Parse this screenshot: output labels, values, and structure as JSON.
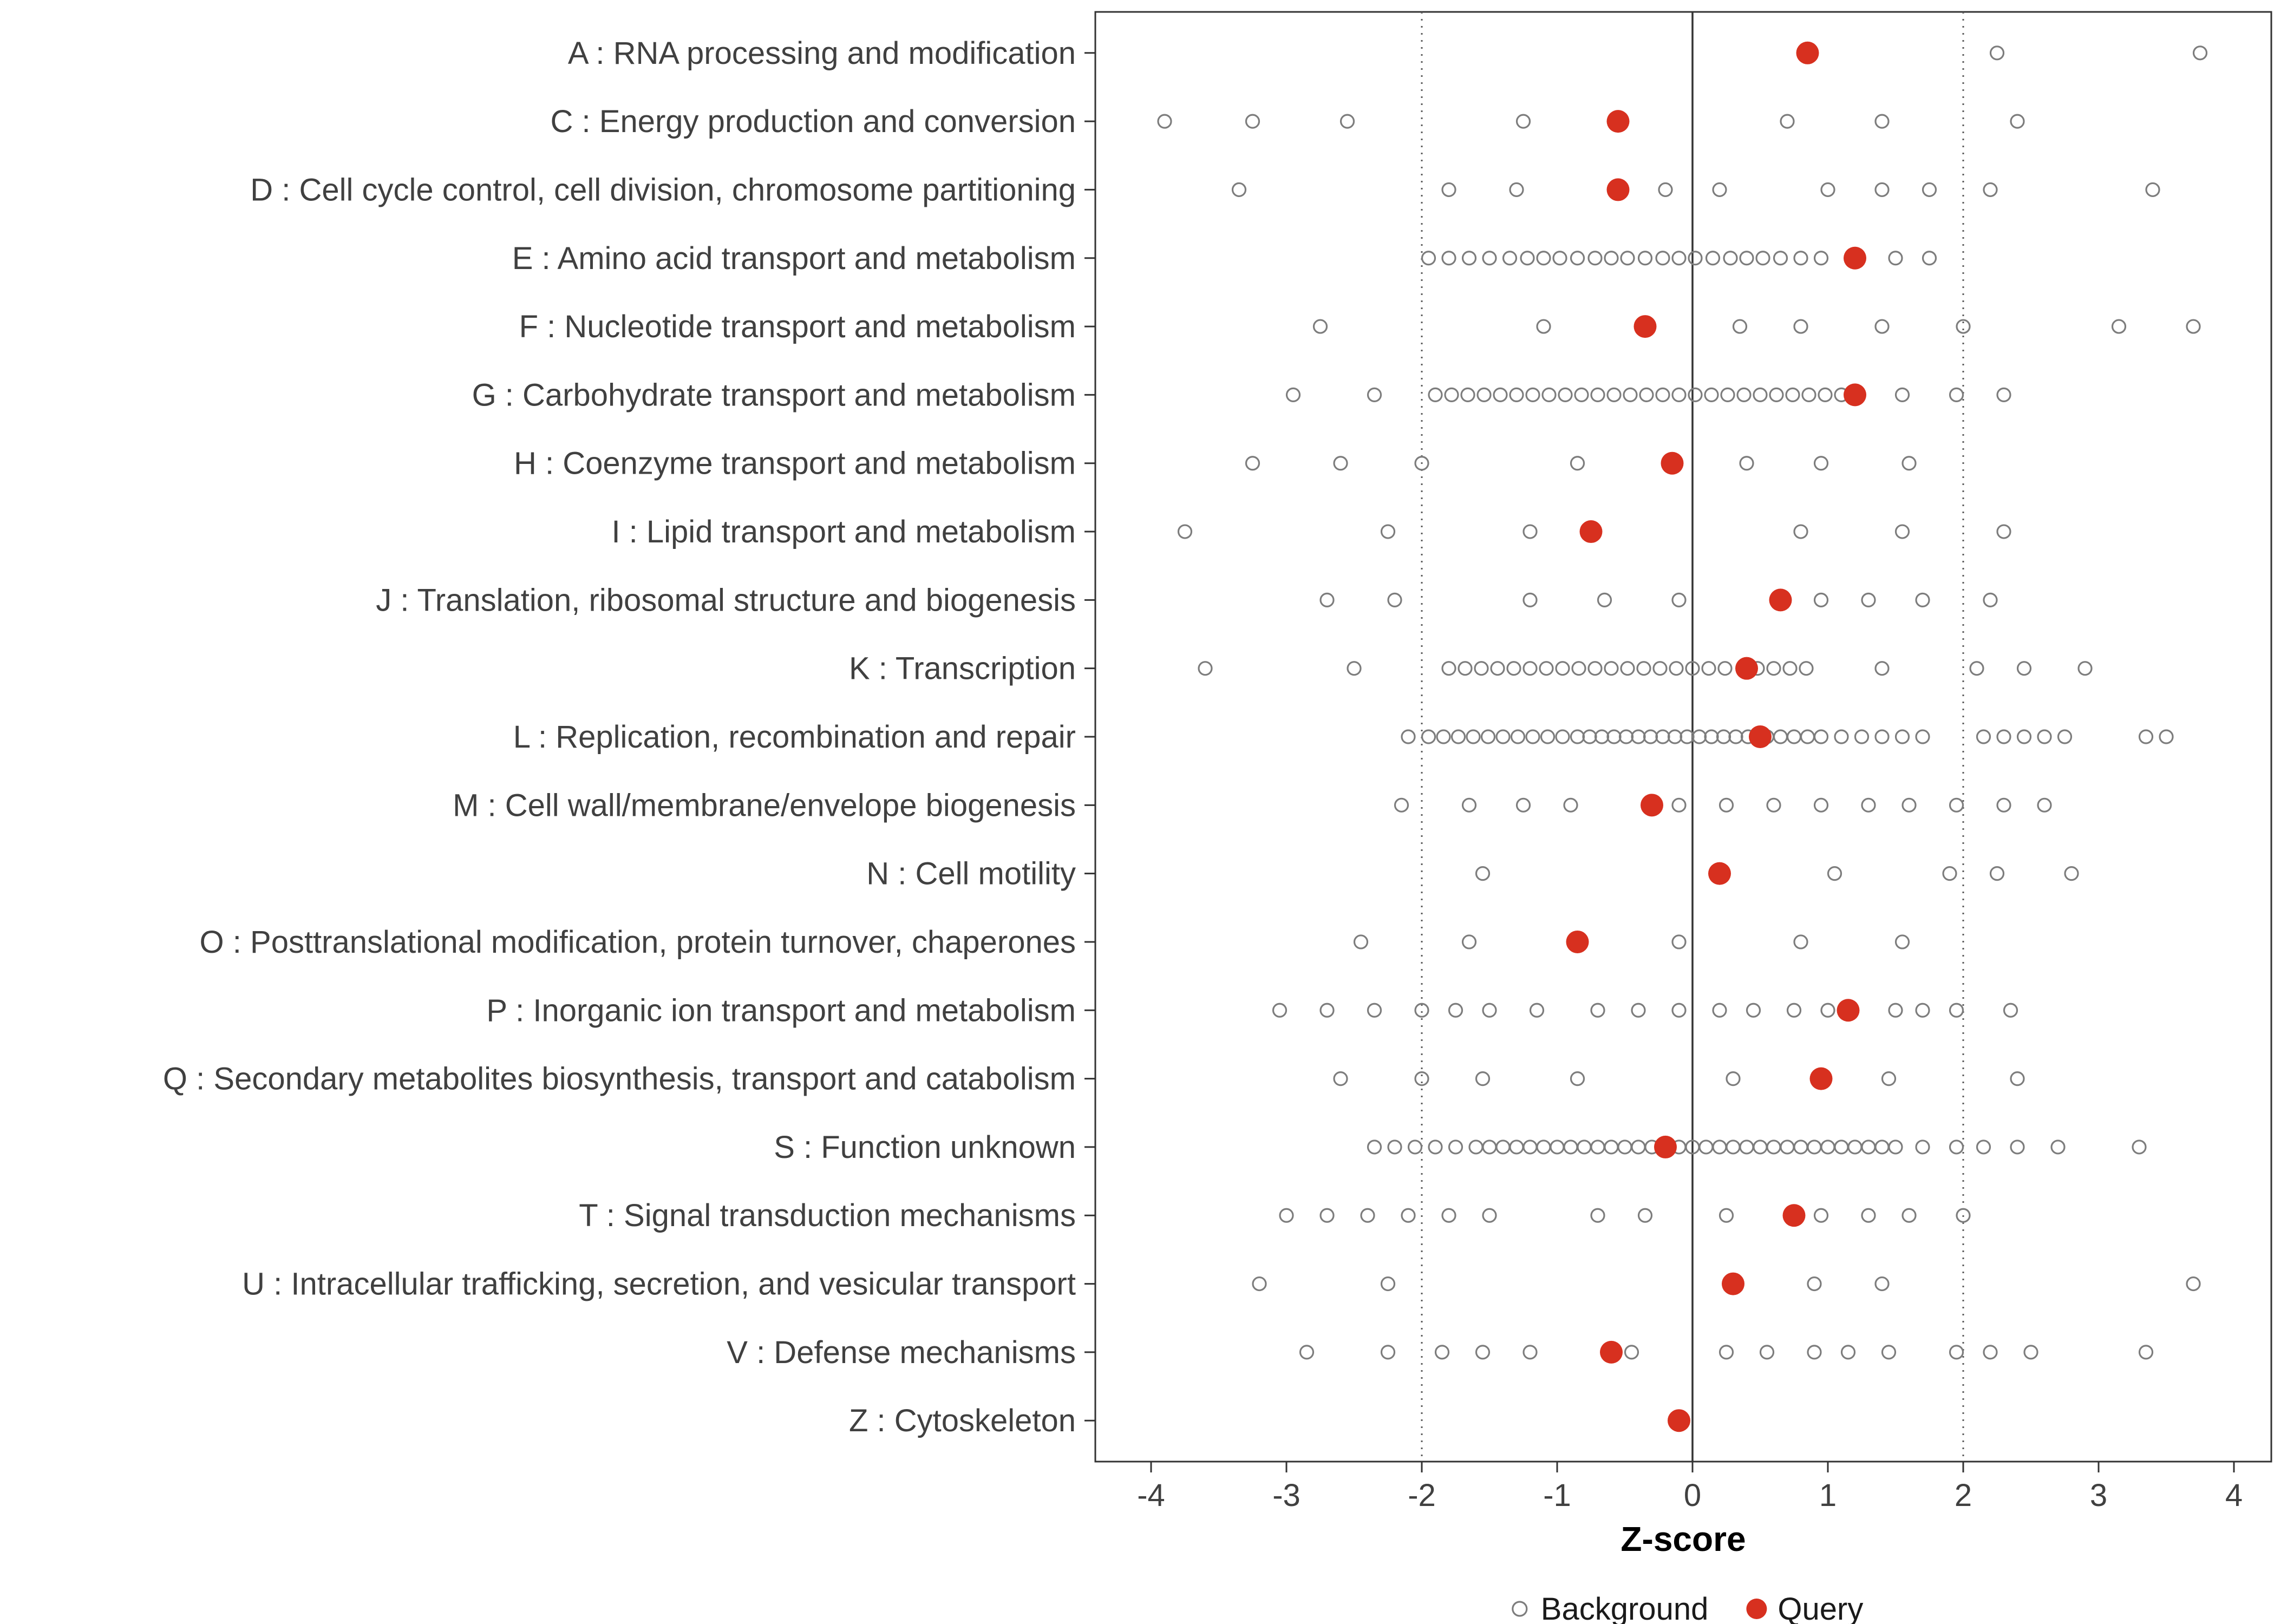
{
  "chart_data": {
    "type": "scatter",
    "title": "",
    "xlabel": "Z-score",
    "ylabel": "",
    "xlim": [
      -4.41,
      4.26
    ],
    "x_ticks": [
      -4,
      -3,
      -2,
      -1,
      0,
      1,
      2,
      3,
      4
    ],
    "grid": false,
    "reference_lines": {
      "solid": [
        0
      ],
      "dotted": [
        -2,
        2
      ]
    },
    "legend_position": "bottom-center",
    "legend": [
      {
        "label": "Background",
        "marker": "open-circle",
        "color": "#7d7d7d"
      },
      {
        "label": "Query",
        "marker": "filled-circle",
        "color": "#d7301f"
      }
    ],
    "colors": {
      "background_stroke": "#7d7d7d",
      "query_fill": "#d7301f",
      "axis": "#333333",
      "tick_label": "#404040",
      "panel_border": "#333333",
      "ref_solid": "#333333",
      "ref_dotted": "#5a5a5a",
      "legend_text": "#1a1a1a",
      "axis_title": "#000000"
    },
    "categories": [
      {
        "label": "A : RNA processing and modification",
        "query": 0.85,
        "background": [
          2.25,
          3.75
        ]
      },
      {
        "label": "C : Energy production and conversion",
        "query": -0.55,
        "background": [
          -3.9,
          -3.25,
          -2.55,
          -1.25,
          0.7,
          1.4,
          2.4
        ]
      },
      {
        "label": "D : Cell cycle control, cell division, chromosome partitioning",
        "query": -0.55,
        "background": [
          -3.35,
          -1.8,
          -1.3,
          -0.2,
          0.2,
          1.0,
          1.4,
          1.75,
          2.2,
          3.4
        ]
      },
      {
        "label": "E : Amino acid transport and metabolism",
        "query": 1.2,
        "background": [
          -1.95,
          -1.8,
          -1.65,
          -1.5,
          -1.35,
          -1.22,
          -1.1,
          -0.98,
          -0.85,
          -0.72,
          -0.6,
          -0.48,
          -0.35,
          -0.22,
          -0.1,
          0.02,
          0.15,
          0.28,
          0.4,
          0.52,
          0.65,
          0.8,
          0.95,
          1.5,
          1.75
        ]
      },
      {
        "label": "F : Nucleotide transport and metabolism",
        "query": -0.35,
        "background": [
          -2.75,
          -1.1,
          0.35,
          0.8,
          1.4,
          2.0,
          3.15,
          3.7
        ]
      },
      {
        "label": "G : Carbohydrate transport and metabolism",
        "query": 1.2,
        "background": [
          -2.95,
          -2.35,
          -1.9,
          -1.78,
          -1.66,
          -1.54,
          -1.42,
          -1.3,
          -1.18,
          -1.06,
          -0.94,
          -0.82,
          -0.7,
          -0.58,
          -0.46,
          -0.34,
          -0.22,
          -0.1,
          0.02,
          0.14,
          0.26,
          0.38,
          0.5,
          0.62,
          0.74,
          0.86,
          0.98,
          1.1,
          1.55,
          1.95,
          2.3
        ]
      },
      {
        "label": "H : Coenzyme transport and metabolism",
        "query": -0.15,
        "background": [
          -3.25,
          -2.6,
          -2.0,
          -0.85,
          0.4,
          0.95,
          1.6
        ]
      },
      {
        "label": "I : Lipid transport and metabolism",
        "query": -0.75,
        "background": [
          -3.75,
          -2.25,
          -1.2,
          0.8,
          1.55,
          2.3
        ]
      },
      {
        "label": "J : Translation, ribosomal structure and biogenesis",
        "query": 0.65,
        "background": [
          -2.7,
          -2.2,
          -1.2,
          -0.65,
          -0.1,
          0.95,
          1.3,
          1.7,
          2.2
        ]
      },
      {
        "label": "K : Transcription",
        "query": 0.4,
        "background": [
          -3.6,
          -2.5,
          -1.8,
          -1.68,
          -1.56,
          -1.44,
          -1.32,
          -1.2,
          -1.08,
          -0.96,
          -0.84,
          -0.72,
          -0.6,
          -0.48,
          -0.36,
          -0.24,
          -0.12,
          0,
          0.12,
          0.24,
          0.48,
          0.6,
          0.72,
          0.84,
          1.4,
          2.1,
          2.45,
          2.9
        ]
      },
      {
        "label": "L : Replication, recombination and repair",
        "query": 0.5,
        "background": [
          -2.1,
          -1.95,
          -1.84,
          -1.73,
          -1.62,
          -1.51,
          -1.4,
          -1.29,
          -1.18,
          -1.07,
          -0.96,
          -0.85,
          -0.76,
          -0.67,
          -0.58,
          -0.49,
          -0.4,
          -0.31,
          -0.22,
          -0.13,
          -0.04,
          0.05,
          0.14,
          0.23,
          0.32,
          0.41,
          0.55,
          0.65,
          0.75,
          0.85,
          0.95,
          1.1,
          1.25,
          1.4,
          1.55,
          1.7,
          2.15,
          2.3,
          2.45,
          2.6,
          2.75,
          3.35,
          3.5
        ]
      },
      {
        "label": "M : Cell wall/membrane/envelope biogenesis",
        "query": -0.3,
        "background": [
          -2.15,
          -1.65,
          -1.25,
          -0.9,
          -0.1,
          0.25,
          0.6,
          0.95,
          1.3,
          1.6,
          1.95,
          2.3,
          2.6
        ]
      },
      {
        "label": "N : Cell motility",
        "query": 0.2,
        "background": [
          -1.55,
          1.05,
          1.9,
          2.25,
          2.8
        ]
      },
      {
        "label": "O : Posttranslational modification, protein turnover, chaperones",
        "query": -0.85,
        "background": [
          -2.45,
          -1.65,
          -0.1,
          0.8,
          1.55
        ]
      },
      {
        "label": "P : Inorganic ion transport and metabolism",
        "query": 1.15,
        "background": [
          -3.05,
          -2.7,
          -2.35,
          -2.0,
          -1.75,
          -1.5,
          -1.15,
          -0.7,
          -0.4,
          -0.1,
          0.2,
          0.45,
          0.75,
          1.0,
          1.5,
          1.7,
          1.95,
          2.35
        ]
      },
      {
        "label": "Q : Secondary metabolites biosynthesis, transport and catabolism",
        "query": 0.95,
        "background": [
          -2.6,
          -2.0,
          -1.55,
          -0.85,
          0.3,
          1.45,
          2.4
        ]
      },
      {
        "label": "S : Function unknown",
        "query": -0.2,
        "background": [
          -2.35,
          -2.2,
          -2.05,
          -1.9,
          -1.75,
          -1.6,
          -1.5,
          -1.4,
          -1.3,
          -1.2,
          -1.1,
          -1.0,
          -0.9,
          -0.8,
          -0.7,
          -0.6,
          -0.5,
          -0.4,
          -0.3,
          -0.1,
          0,
          0.1,
          0.2,
          0.3,
          0.4,
          0.5,
          0.6,
          0.7,
          0.8,
          0.9,
          1.0,
          1.1,
          1.2,
          1.3,
          1.4,
          1.5,
          1.7,
          1.95,
          2.15,
          2.4,
          2.7,
          3.3
        ]
      },
      {
        "label": "T : Signal transduction mechanisms",
        "query": 0.75,
        "background": [
          -3.0,
          -2.7,
          -2.4,
          -2.1,
          -1.8,
          -1.5,
          -0.7,
          -0.35,
          0.25,
          0.95,
          1.3,
          1.6,
          2.0
        ]
      },
      {
        "label": "U : Intracellular trafficking, secretion, and vesicular transport",
        "query": 0.3,
        "background": [
          -3.2,
          -2.25,
          0.9,
          1.4,
          3.7
        ]
      },
      {
        "label": "V : Defense mechanisms",
        "query": -0.6,
        "background": [
          -2.85,
          -2.25,
          -1.85,
          -1.55,
          -1.2,
          -0.45,
          0.25,
          0.55,
          0.9,
          1.15,
          1.45,
          1.95,
          2.2,
          2.5,
          3.35
        ]
      },
      {
        "label": "Z : Cytoskeleton",
        "query": -0.1,
        "background": []
      }
    ]
  }
}
